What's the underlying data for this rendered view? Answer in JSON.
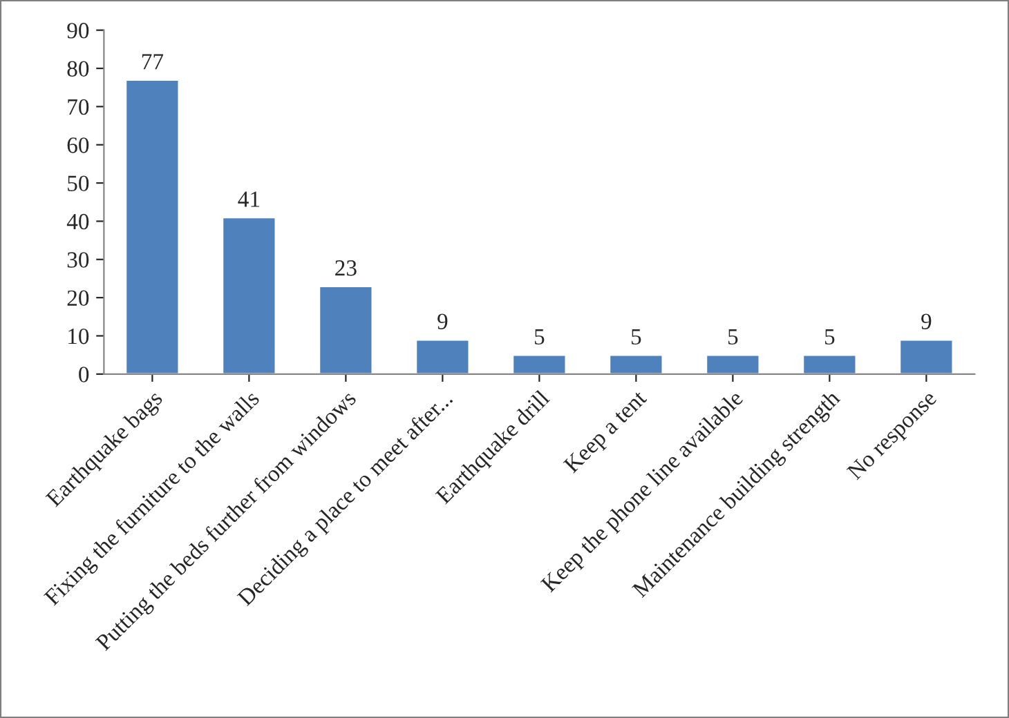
{
  "chart_data": {
    "type": "bar",
    "categories": [
      "Earthquake bags",
      "Fixing the furniture to the walls",
      "Putting the beds further from windows",
      "Deciding a place to meet after...",
      "Earthquake drill",
      "Keep a tent",
      "Keep the phone line available",
      "Maintenance building strength",
      "No response"
    ],
    "values": [
      77,
      41,
      23,
      9,
      5,
      5,
      5,
      5,
      9
    ],
    "color": "#4f81bd",
    "ylim": [
      0,
      90
    ],
    "yticks": [
      0,
      10,
      20,
      30,
      40,
      50,
      60,
      70,
      80,
      90
    ],
    "data_labels": true,
    "grid": false
  }
}
